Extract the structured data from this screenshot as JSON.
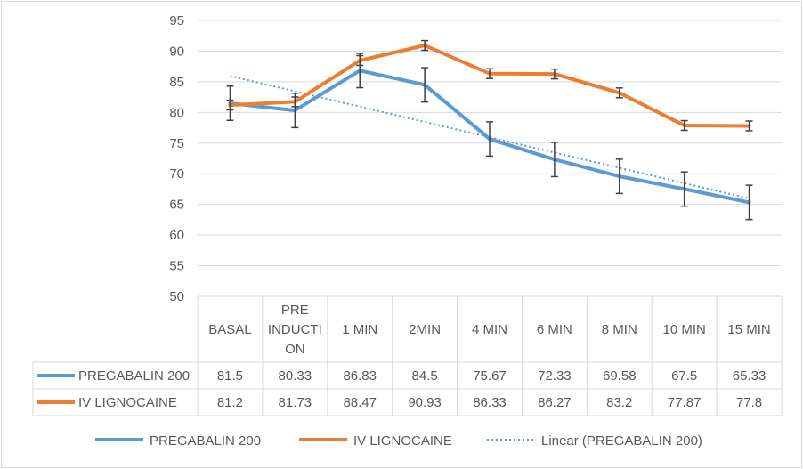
{
  "chart_data": {
    "type": "line",
    "categories": [
      [
        "BASAL"
      ],
      [
        "PRE",
        "INDUCTI",
        "ON"
      ],
      [
        "1 MIN"
      ],
      [
        "2MIN"
      ],
      [
        "4 MIN"
      ],
      [
        "6 MIN"
      ],
      [
        "8 MIN"
      ],
      [
        "10 MIN"
      ],
      [
        "15 MIN"
      ]
    ],
    "series": [
      {
        "name": "PREGABALIN 200",
        "values": [
          81.5,
          80.33,
          86.83,
          84.5,
          75.67,
          72.33,
          69.58,
          67.5,
          65.33
        ],
        "labels": [
          "81.5",
          "80.33",
          "86.83",
          "84.5",
          "75.67",
          "72.33",
          "69.58",
          "67.5",
          "65.33"
        ],
        "color": "#5b9bd5"
      },
      {
        "name": "IV LIGNOCAINE",
        "values": [
          81.2,
          81.73,
          88.47,
          90.93,
          86.33,
          86.27,
          83.2,
          77.87,
          77.8
        ],
        "labels": [
          "81.2",
          "81.73",
          "88.47",
          "90.93",
          "86.33",
          "86.27",
          "83.2",
          "77.87",
          "77.8"
        ],
        "color": "#ed7d31"
      }
    ],
    "trendline": {
      "name": "Linear (PREGABALIN 200)",
      "of_series": "PREGABALIN 200",
      "type": "linear",
      "color": "#5b9bd5"
    },
    "error_bars": true,
    "error_bar_color": "#404040",
    "ylim": [
      50,
      95
    ],
    "yticks": [
      "50",
      "55",
      "60",
      "65",
      "70",
      "75",
      "80",
      "85",
      "90",
      "95"
    ],
    "grid": true,
    "grid_color": "#d9d9d9",
    "data_table": true,
    "legend": "bottom"
  }
}
